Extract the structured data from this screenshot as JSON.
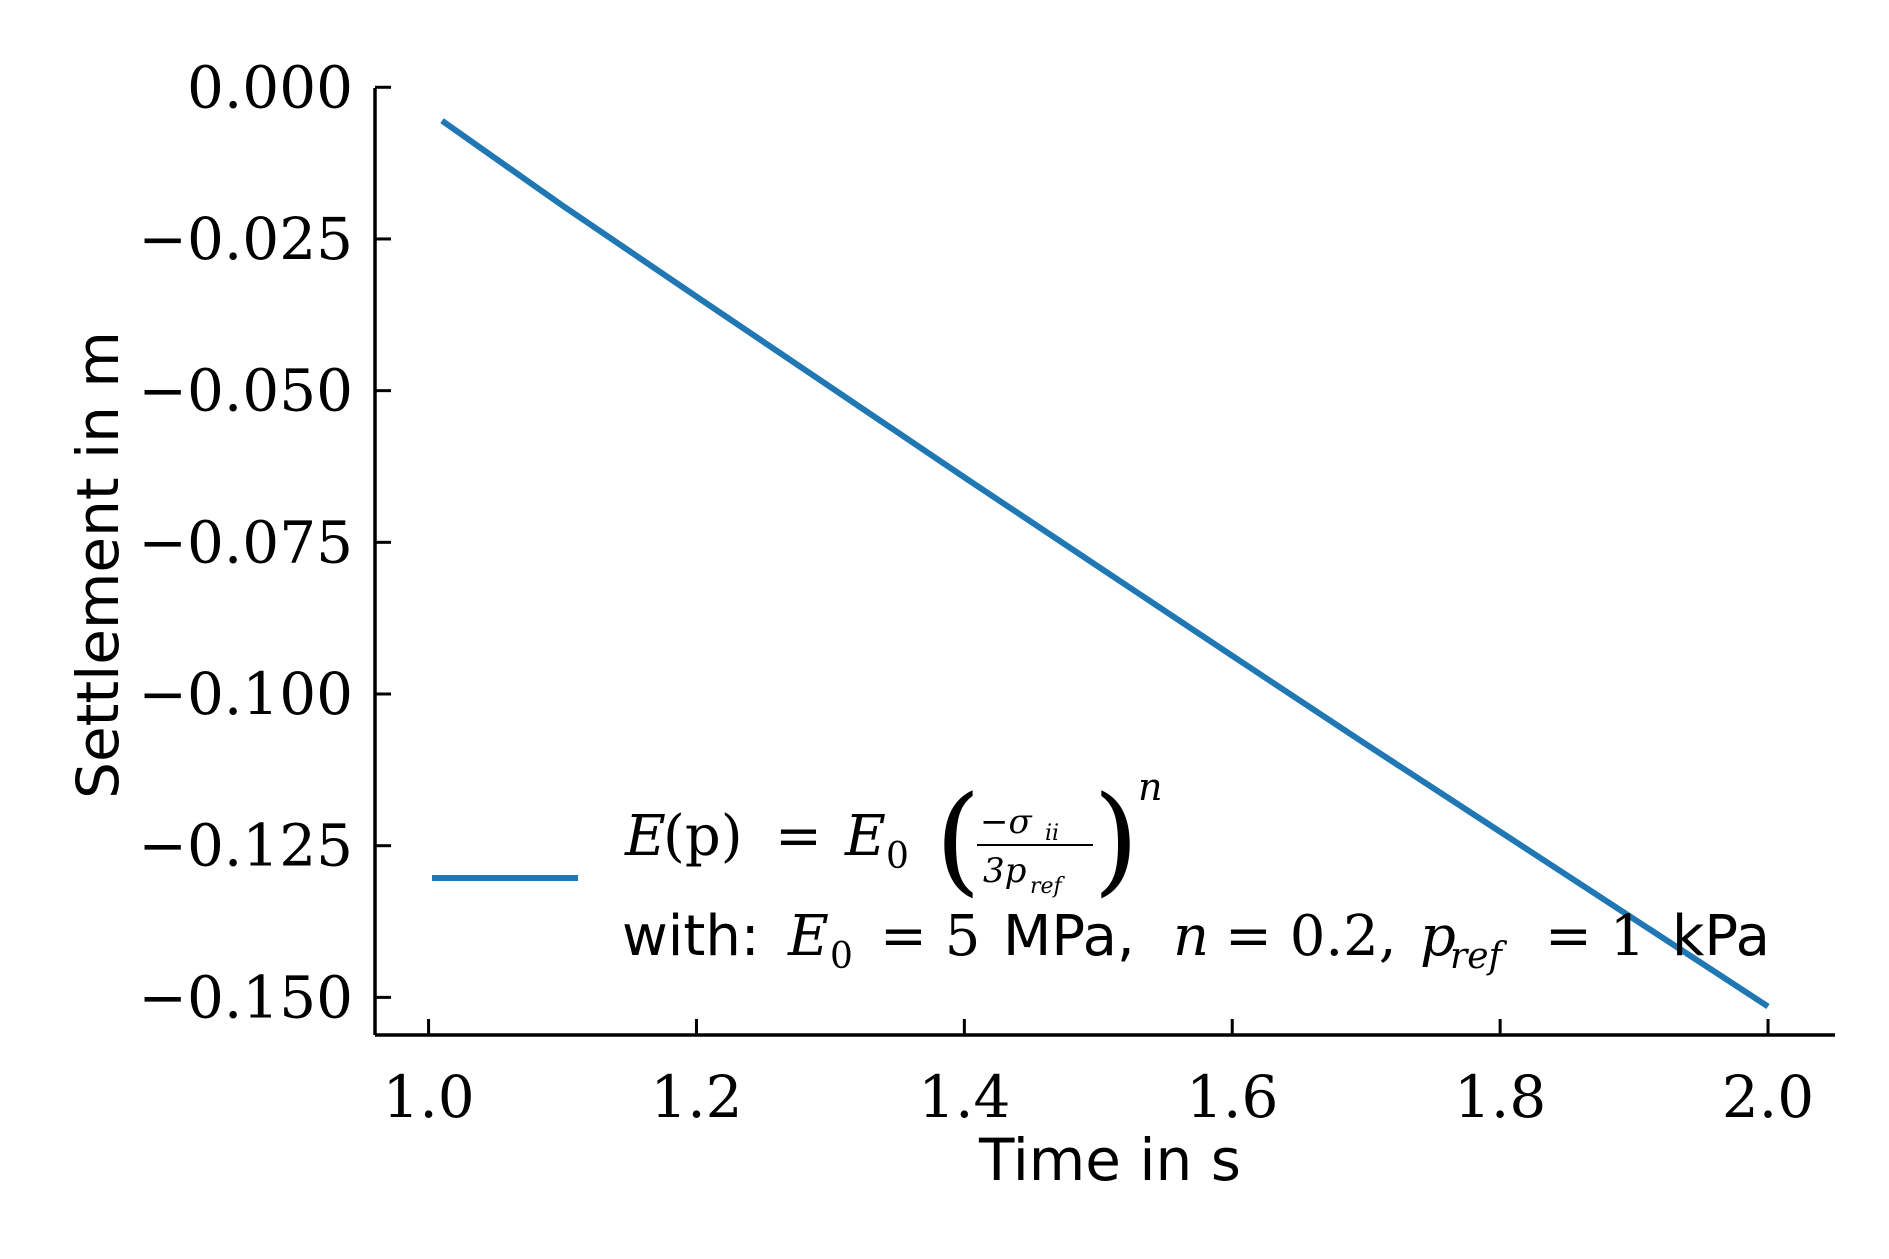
{
  "chart_data": {
    "type": "line",
    "title": "",
    "xlabel": "Time in s",
    "ylabel": "Settlement in m",
    "xlim": [
      0.96,
      2.05
    ],
    "ylim": [
      -0.1562,
      0.0012
    ],
    "xticks": [
      1.0,
      1.2,
      1.4,
      1.6,
      1.8,
      2.0
    ],
    "xtick_labels": [
      "1.0",
      "1.2",
      "1.4",
      "1.6",
      "1.8",
      "2.0"
    ],
    "yticks": [
      0.0,
      -0.025,
      -0.05,
      -0.075,
      -0.1,
      -0.125,
      -0.15
    ],
    "ytick_labels": [
      "0.000",
      "−0.025",
      "−0.050",
      "−0.075",
      "−0.100",
      "−0.125",
      "−0.150"
    ],
    "grid": false,
    "legend_position": "lower-left",
    "series": [
      {
        "name": "E(p) = E₀ (−σᵢᵢ / 3p_ref)ⁿ with: E₀ = 5 MPa, n = 0.2, p_ref = 1 kPa",
        "color": "#1f77b4",
        "x": [
          1.01,
          1.1,
          1.2,
          1.3,
          1.4,
          1.5,
          1.6,
          1.7,
          1.8,
          1.9,
          2.0
        ],
        "y": [
          -0.0055,
          -0.0195,
          -0.0345,
          -0.0494,
          -0.0643,
          -0.079,
          -0.0937,
          -0.1083,
          -0.1227,
          -0.1371,
          -0.1515
        ]
      }
    ]
  },
  "legend": {
    "line1": {
      "E": "E",
      "p_paren": "(p)",
      "eq": "=",
      "E0": "E",
      "E0_sub": "0",
      "num": "−σ",
      "num_sub": "ii",
      "den": "3p",
      "den_sub": "ref",
      "exp": "n"
    },
    "line2": {
      "with": "with:",
      "E0": "E",
      "E0_sub": "0",
      "eq1": "= 5",
      "unit1": "MPa,",
      "n": "n",
      "eq2": "= 0.2,",
      "p": "p",
      "p_sub": "ref",
      "eq3": "= 1",
      "unit3": "kPa"
    }
  }
}
